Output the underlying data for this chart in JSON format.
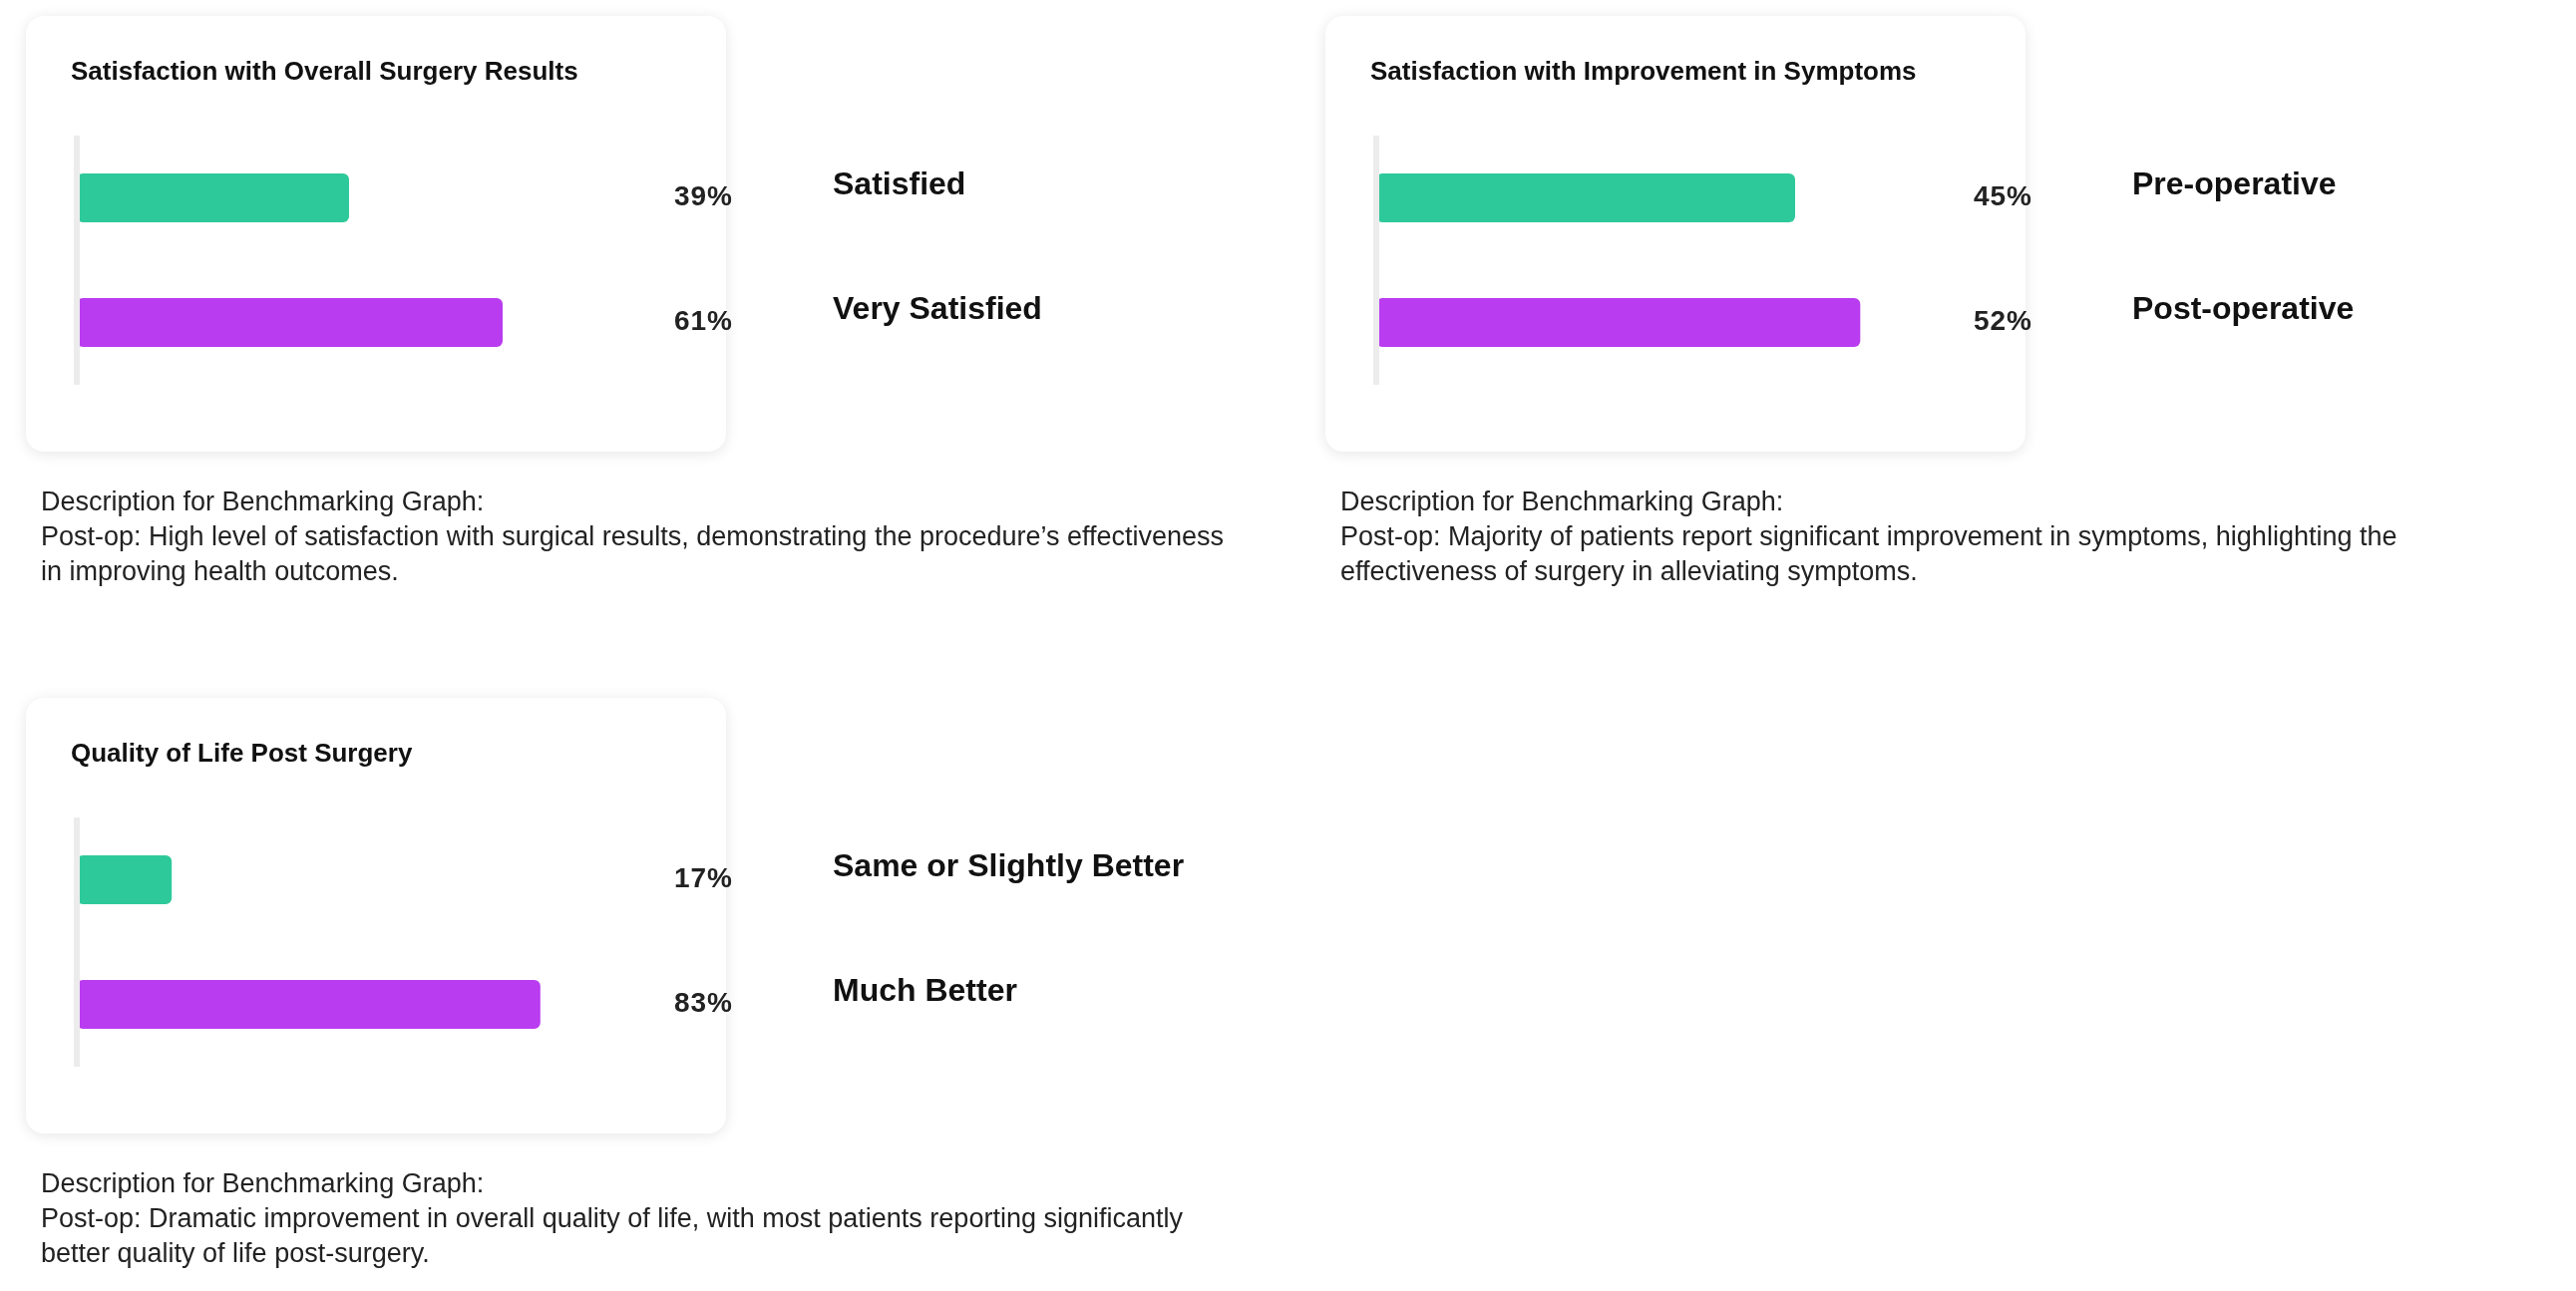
{
  "chart_data": [
    {
      "type": "bar",
      "orientation": "horizontal",
      "title": "Satisfaction with Overall Surgery Results",
      "categories": [
        "Satisfied",
        "Very Satisfied"
      ],
      "values": [
        39,
        61
      ],
      "value_labels": [
        "39%",
        "61%"
      ],
      "colors": [
        "#2ec99a",
        "#b93cf0"
      ],
      "grid": false,
      "legend": false,
      "annotations": [
        "Description for Benchmarking Graph:",
        "Post-op: High level of satisfaction with surgical results, demonstrating the procedure’s effectiveness in improving health outcomes."
      ]
    },
    {
      "type": "bar",
      "orientation": "horizontal",
      "title": "Satisfaction with Improvement in Symptoms",
      "categories": [
        "Pre-operative",
        "Post-operative"
      ],
      "values": [
        45,
        52
      ],
      "value_labels": [
        "45%",
        "52%"
      ],
      "colors": [
        "#2ec99a",
        "#b93cf0"
      ],
      "grid": false,
      "legend": false,
      "annotations": [
        "Description for Benchmarking Graph:",
        "Post-op: Majority of patients report significant improvement in symptoms, highlighting the effectiveness of surgery in alleviating symptoms."
      ]
    },
    {
      "type": "bar",
      "orientation": "horizontal",
      "title": "Quality of Life Post Surgery",
      "categories": [
        "Same or Slightly Better",
        "Much Better"
      ],
      "values": [
        17,
        83
      ],
      "value_labels": [
        "17%",
        "83%"
      ],
      "colors": [
        "#2ec99a",
        "#b93cf0"
      ],
      "grid": false,
      "legend": false,
      "annotations": [
        "Description for Benchmarking Graph:",
        "Post-op: Dramatic improvement in overall quality of life, with most patients reporting significantly better quality of life post-surgery."
      ]
    }
  ]
}
